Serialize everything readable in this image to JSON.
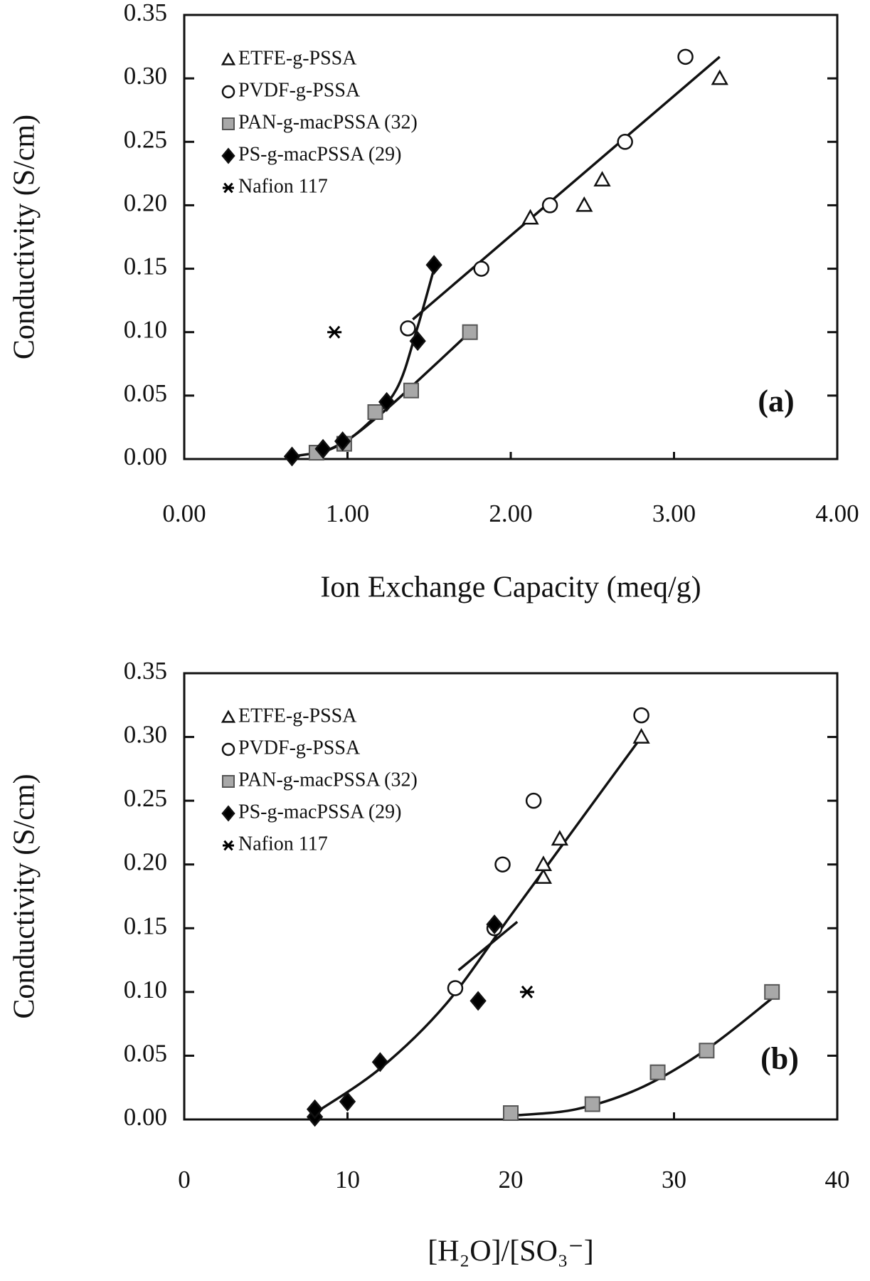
{
  "chart_data": [
    {
      "type": "scatter",
      "panel_label": "(a)",
      "xlabel": "Ion Exchange Capacity (meq/g)",
      "ylabel": "Conductivity (S/cm)",
      "xlim": [
        0,
        4
      ],
      "xticks": [
        {
          "value": 0,
          "label": "0.00"
        },
        {
          "value": 1,
          "label": "1.00"
        },
        {
          "value": 2,
          "label": "2.00"
        },
        {
          "value": 3,
          "label": "3.00"
        },
        {
          "value": 4,
          "label": "4.00"
        }
      ],
      "ylim": [
        0,
        0.35
      ],
      "yticks": [
        {
          "value": 0,
          "label": "0.00"
        },
        0.05,
        {
          "value": 0.1,
          "label": "0.10"
        },
        0.15,
        {
          "value": 0.2,
          "label": "0.20"
        },
        0.25,
        {
          "value": 0.3,
          "label": "0.30"
        },
        0.35
      ],
      "series": [
        {
          "name": "ETFE-g-PSSA",
          "marker": "triangle",
          "color": "#ffffff",
          "x": [
            2.12,
            2.45,
            2.56,
            3.28
          ],
          "y": [
            0.19,
            0.2,
            0.22,
            0.3
          ]
        },
        {
          "name": "PVDF-g-PSSA",
          "marker": "circle",
          "color": "#ffffff",
          "x": [
            1.37,
            1.82,
            2.24,
            2.7,
            3.07
          ],
          "y": [
            0.103,
            0.15,
            0.2,
            0.25,
            0.317
          ]
        },
        {
          "name": "PAN-g-macPSSA (32)",
          "marker": "square",
          "color": "#a8a8a8",
          "x": [
            0.81,
            0.98,
            1.17,
            1.39,
            1.75
          ],
          "y": [
            0.005,
            0.012,
            0.037,
            0.054,
            0.1
          ]
        },
        {
          "name": "PS-g-macPSSA (29)",
          "marker": "diamond",
          "color": "#000000",
          "x": [
            0.66,
            0.85,
            0.97,
            1.24,
            1.43,
            1.53
          ],
          "y": [
            0.002,
            0.008,
            0.014,
            0.045,
            0.093,
            0.153
          ]
        },
        {
          "name": "Nafion 117",
          "marker": "asterisk",
          "color": "#000000",
          "x": [
            0.92
          ],
          "y": [
            0.1
          ]
        }
      ],
      "fit_lines": [
        {
          "x": [
            1.4,
            3.28
          ],
          "y": [
            0.11,
            0.317
          ]
        },
        {
          "x": [
            0.66,
            0.9,
            1.1,
            1.3,
            1.42,
            1.53
          ],
          "y": [
            0.002,
            0.008,
            0.025,
            0.055,
            0.1,
            0.15
          ]
        },
        {
          "x": [
            0.81,
            1.0,
            1.2,
            1.4,
            1.75
          ],
          "y": [
            0.003,
            0.015,
            0.035,
            0.058,
            0.1
          ]
        }
      ]
    },
    {
      "type": "scatter",
      "panel_label": "(b)",
      "xlabel": "[H₂O]/[SO₃⁻]",
      "ylabel": "Conductivity (S/cm)",
      "xlim": [
        0,
        40
      ],
      "xticks": [
        0,
        10,
        20,
        30,
        40
      ],
      "ylim": [
        0,
        0.35
      ],
      "yticks": [
        {
          "value": 0,
          "label": "0.00"
        },
        0.05,
        {
          "value": 0.1,
          "label": "0.10"
        },
        0.15,
        {
          "value": 0.2,
          "label": "0.20"
        },
        0.25,
        {
          "value": 0.3,
          "label": "0.30"
        },
        0.35
      ],
      "series": [
        {
          "name": "ETFE-g-PSSA",
          "marker": "triangle",
          "color": "#ffffff",
          "x": [
            22,
            22,
            23,
            28
          ],
          "y": [
            0.19,
            0.2,
            0.22,
            0.3
          ]
        },
        {
          "name": "PVDF-g-PSSA",
          "marker": "circle",
          "color": "#ffffff",
          "x": [
            16.6,
            19,
            19.5,
            21.4,
            28
          ],
          "y": [
            0.103,
            0.15,
            0.2,
            0.25,
            0.317
          ]
        },
        {
          "name": "PAN-g-macPSSA (32)",
          "marker": "square",
          "color": "#a8a8a8",
          "x": [
            20,
            25,
            29,
            32,
            36
          ],
          "y": [
            0.005,
            0.012,
            0.037,
            0.054,
            0.1
          ]
        },
        {
          "name": "PS-g-macPSSA (29)",
          "marker": "diamond",
          "color": "#000000",
          "x": [
            8,
            8,
            10,
            12,
            18,
            19
          ],
          "y": [
            0.002,
            0.008,
            0.014,
            0.045,
            0.093,
            0.153
          ]
        },
        {
          "name": "Nafion 117",
          "marker": "asterisk",
          "color": "#000000",
          "x": [
            21
          ],
          "y": [
            0.1
          ]
        }
      ],
      "fit_lines": [
        {
          "x": [
            8,
            12,
            16,
            20,
            24,
            28
          ],
          "y": [
            0.005,
            0.04,
            0.09,
            0.16,
            0.23,
            0.3
          ]
        },
        {
          "x": [
            16.8,
            20.4
          ],
          "y": [
            0.117,
            0.155
          ]
        },
        {
          "x": [
            20,
            24,
            28,
            32,
            36
          ],
          "y": [
            0.003,
            0.008,
            0.025,
            0.055,
            0.095
          ]
        }
      ]
    }
  ]
}
